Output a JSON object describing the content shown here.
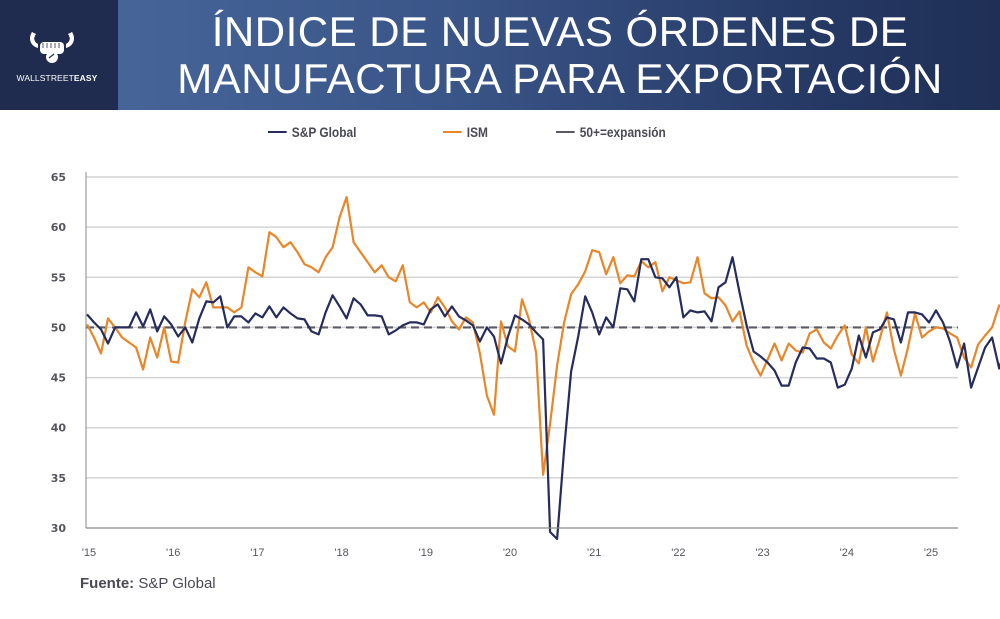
{
  "header": {
    "title_line1": "ÍNDICE DE NUEVAS ÓRDENES DE",
    "title_line2": "MANUFACTURA PARA EXPORTACIÓN",
    "logo_text_light": "WALLSTREET",
    "logo_text_bold": "EASY",
    "logo_icon": "bull-fist-icon",
    "colors": {
      "logo_panel": "#1f2b4f",
      "gradient_left": "#4a6a9e",
      "gradient_right": "#1f2f55"
    }
  },
  "source": {
    "label": "Fuente:",
    "value": "S&P Global"
  },
  "chart_data": {
    "type": "line",
    "title": "ÍNDICE DE NUEVAS ÓRDENES DE MANUFACTURA PARA EXPORTACIÓN",
    "xlabel": "",
    "ylabel": "",
    "ylim": [
      30,
      65
    ],
    "yticks": [
      30,
      35,
      40,
      45,
      50,
      55,
      60,
      65
    ],
    "xtick_labels": [
      "'15",
      "'16",
      "'17",
      "'18",
      "'19",
      "'20",
      "'21",
      "'22",
      "'23",
      "'24",
      "'25"
    ],
    "x_start": "2015-01",
    "x_frequency": "monthly",
    "grid": "horizontal",
    "legend_position": "top",
    "legend": [
      "S&P Global",
      "ISM",
      "50+=expansión"
    ],
    "reference_line": {
      "name": "50+=expansión",
      "value": 50,
      "color": "#5a5a66",
      "style": "dashed"
    },
    "series": [
      {
        "name": "S&P Global",
        "color": "#262c5c",
        "values": [
          51.3,
          50.5,
          49.8,
          48.4,
          50.0,
          50.0,
          50.0,
          51.5,
          50.1,
          51.8,
          49.6,
          51.1,
          50.3,
          49.1,
          50.0,
          48.5,
          50.9,
          52.6,
          52.5,
          53.1,
          50.0,
          51.1,
          51.1,
          50.5,
          51.4,
          51.0,
          52.1,
          51.0,
          52.0,
          51.4,
          50.9,
          50.8,
          49.6,
          49.3,
          51.5,
          53.2,
          52.1,
          50.9,
          52.9,
          52.3,
          51.2,
          51.2,
          51.1,
          49.3,
          49.7,
          50.2,
          50.5,
          50.5,
          50.3,
          51.8,
          52.3,
          51.1,
          52.1,
          51.1,
          50.7,
          50.2,
          48.6,
          50.0,
          49.1,
          46.4,
          49.1,
          51.2,
          50.8,
          50.3,
          49.5,
          48.8,
          29.6,
          28.9,
          37.8,
          45.6,
          49.1,
          53.1,
          51.5,
          49.3,
          51.0,
          50.0,
          53.9,
          53.8,
          52.6,
          56.8,
          56.8,
          55.0,
          54.9,
          54.0,
          55.0,
          51.0,
          51.7,
          51.5,
          51.6,
          50.6,
          54.0,
          54.5,
          57.0,
          53.5,
          50.2,
          47.6,
          47.1,
          46.5,
          45.7,
          44.2,
          44.2,
          46.5,
          48.0,
          47.9,
          46.9,
          46.9,
          46.5,
          44.0,
          44.3,
          45.9,
          49.2,
          47.0,
          49.5,
          49.8,
          51.0,
          50.8,
          48.5,
          51.5,
          51.5,
          51.3,
          50.5,
          51.7,
          50.5,
          48.6,
          46.0,
          48.4,
          44.0,
          46.0,
          48.0,
          49.0,
          45.9,
          48.3,
          47.3
        ]
      },
      {
        "name": "ISM",
        "color": "#e8862a",
        "values": [
          50.3,
          49.0,
          47.4,
          50.9,
          50.0,
          49.0,
          48.5,
          48.0,
          45.8,
          49.0,
          47.0,
          50.0,
          46.6,
          46.5,
          50.5,
          53.8,
          53.0,
          54.5,
          52.0,
          52.0,
          52.0,
          51.5,
          52.0,
          56.0,
          55.5,
          55.1,
          59.5,
          59.0,
          58.0,
          58.5,
          57.5,
          56.3,
          56.0,
          55.5,
          57.0,
          58.0,
          61.0,
          63.0,
          58.5,
          57.5,
          56.5,
          55.5,
          56.2,
          55.0,
          54.6,
          56.2,
          52.5,
          52.0,
          52.5,
          51.5,
          53.0,
          52.0,
          50.6,
          49.8,
          51.0,
          50.5,
          47.4,
          43.2,
          41.3,
          50.6,
          48.1,
          47.6,
          52.8,
          50.8,
          47.5,
          35.3,
          40.4,
          46.2,
          50.5,
          53.3,
          54.3,
          55.6,
          57.7,
          57.5,
          55.3,
          57.0,
          54.4,
          55.2,
          55.1,
          56.6,
          56.0,
          56.5,
          53.6,
          55.0,
          54.7,
          54.4,
          54.5,
          57.0,
          53.4,
          52.9,
          53.0,
          52.2,
          50.6,
          51.6,
          48.2,
          46.5,
          45.2,
          46.8,
          48.4,
          46.7,
          48.4,
          47.7,
          47.5,
          49.4,
          49.8,
          48.5,
          47.9,
          49.2,
          50.2,
          47.3,
          46.4,
          50.0,
          46.6,
          48.9,
          51.5,
          47.8,
          45.2,
          48.0,
          51.4,
          49.0,
          49.6,
          50.0,
          49.9,
          49.4,
          49.0,
          47.0,
          46.0,
          48.3,
          49.2,
          50.0,
          52.2,
          51.5,
          49.0
        ]
      }
    ]
  }
}
